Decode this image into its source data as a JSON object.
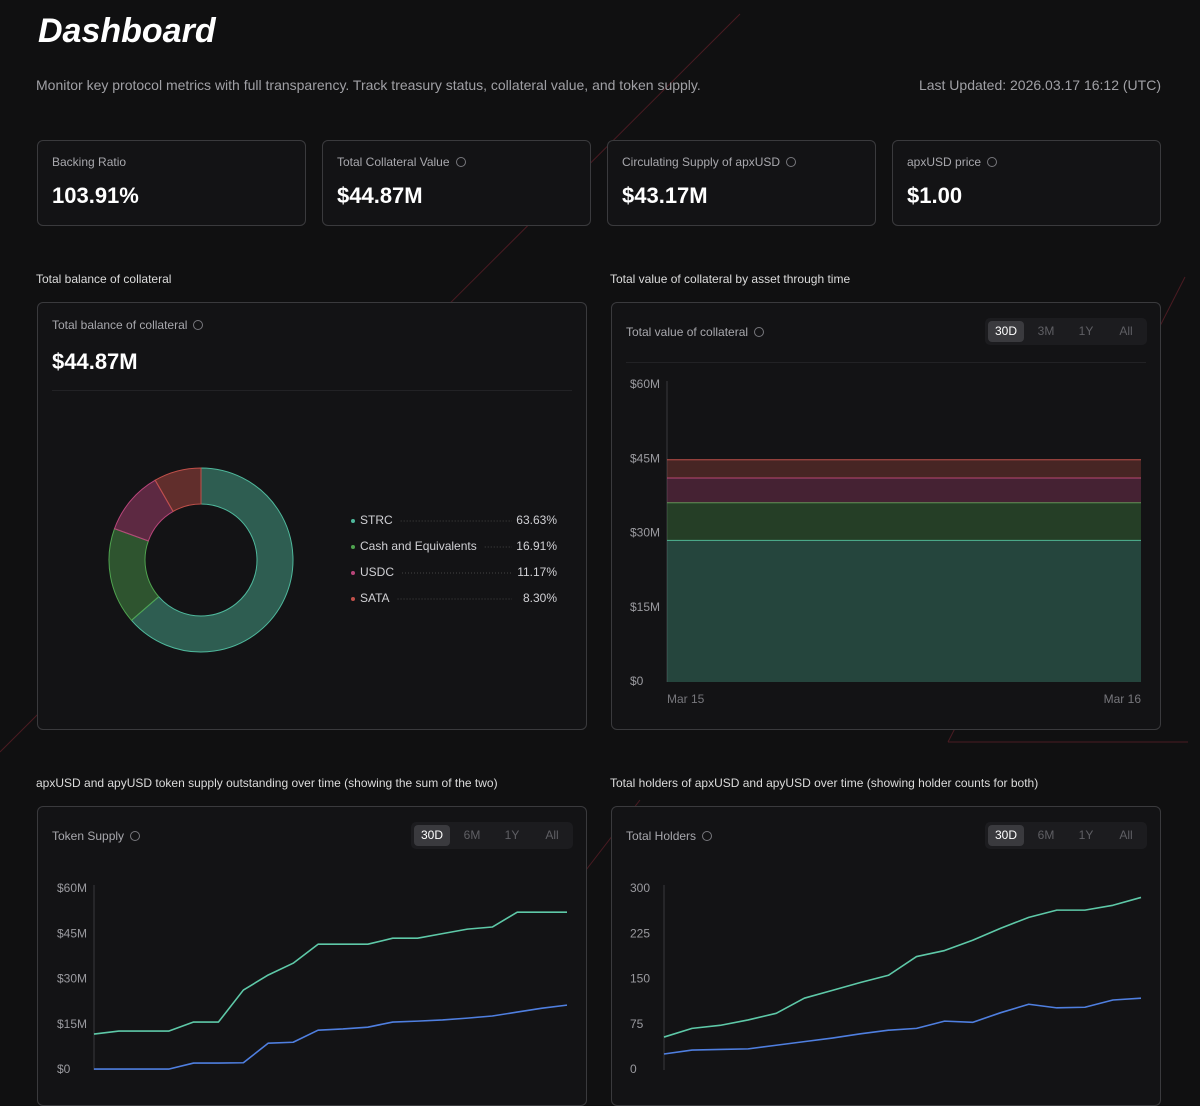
{
  "header": {
    "title": "Dashboard",
    "description": "Monitor key protocol metrics with full transparency. Track treasury status, collateral value, and token supply.",
    "last_updated": "Last Updated: 2026.03.17 16:12 (UTC)"
  },
  "stats": [
    {
      "label": "Backing Ratio",
      "value": "103.91%",
      "info": false
    },
    {
      "label": "Total Collateral Value",
      "value": "$44.87M",
      "info": true
    },
    {
      "label": "Circulating Supply of apxUSD",
      "value": "$43.17M",
      "info": true
    },
    {
      "label": "apxUSD price",
      "value": "$1.00",
      "info": true
    }
  ],
  "collateral_balance": {
    "section_title": "Total balance of collateral",
    "card_label": "Total balance of collateral",
    "total": "$44.87M",
    "chart_data": {
      "type": "pie",
      "categories": [
        "STRC",
        "Cash and Equivalents",
        "USDC",
        "SATA"
      ],
      "values": [
        63.63,
        16.91,
        11.17,
        8.3
      ],
      "value_labels": [
        "63.63%",
        "16.91%",
        "11.17%",
        "8.30%"
      ],
      "colors": [
        "#4fb89c",
        "#4fa34f",
        "#b8457a",
        "#c0504a"
      ]
    }
  },
  "collateral_value": {
    "section_title": "Total value of collateral by asset through time",
    "card_label": "Total value of collateral",
    "tabs": [
      "30D",
      "3M",
      "1Y",
      "All"
    ],
    "chart_data": {
      "type": "area",
      "stacked": true,
      "categories": [
        "Mar 15",
        "Mar 16"
      ],
      "series": [
        {
          "name": "STRC",
          "color": "#4fb89c",
          "values": [
            28.6,
            28.6
          ]
        },
        {
          "name": "Cash and Equivalents",
          "color": "#4fa34f",
          "values": [
            7.6,
            7.6
          ]
        },
        {
          "name": "USDC",
          "color": "#b8457a",
          "values": [
            5.0,
            5.0
          ]
        },
        {
          "name": "SATA",
          "color": "#c0504a",
          "values": [
            3.7,
            3.7
          ]
        }
      ],
      "ylim": [
        0,
        60
      ],
      "yticks": [
        {
          "value": 0,
          "label": "$0"
        },
        {
          "value": 15,
          "label": "$15M"
        },
        {
          "value": 30,
          "label": "$30M"
        },
        {
          "value": 45,
          "label": "$45M"
        },
        {
          "value": 60,
          "label": "$60M"
        }
      ]
    }
  },
  "token_supply": {
    "section_title": "apxUSD and apyUSD token supply outstanding over time (showing the sum of the two)",
    "card_label": "Token Supply",
    "tabs": [
      "30D",
      "6M",
      "1Y",
      "All"
    ],
    "chart_data": {
      "type": "line",
      "categories": [
        null,
        null,
        null,
        null,
        null,
        null,
        null,
        null,
        null,
        null,
        null,
        null,
        null,
        null,
        null,
        null,
        null,
        null,
        null,
        null
      ],
      "series": [
        {
          "color": "#5ec9a8",
          "values": [
            11.9,
            12.9,
            12.9,
            12.9,
            15.9,
            15.9,
            26.5,
            31.5,
            35.4,
            41.7,
            41.7,
            41.7,
            43.7,
            43.7,
            45.2,
            46.7,
            47.4,
            52.3,
            52.3,
            52.3
          ]
        },
        {
          "color": "#4f7fe0",
          "values": [
            0.3,
            0.3,
            0.3,
            0.3,
            2.3,
            2.3,
            2.4,
            8.9,
            9.2,
            13.2,
            13.6,
            14.2,
            15.9,
            16.2,
            16.6,
            17.2,
            17.9,
            19.2,
            20.5,
            21.5
          ]
        }
      ],
      "ylim": [
        0,
        60
      ],
      "yticks": [
        {
          "value": 0,
          "label": "$0"
        },
        {
          "value": 15,
          "label": "$15M"
        },
        {
          "value": 30,
          "label": "$30M"
        },
        {
          "value": 45,
          "label": "$45M"
        },
        {
          "value": 60,
          "label": "$60M"
        }
      ]
    }
  },
  "holders": {
    "section_title": "Total holders of apxUSD and apyUSD over time (showing holder counts for both)",
    "card_label": "Total Holders",
    "tabs": [
      "30D",
      "6M",
      "1Y",
      "All"
    ],
    "chart_data": {
      "type": "line",
      "categories": [
        null,
        null,
        null,
        null,
        null,
        null,
        null,
        null,
        null,
        null,
        null,
        null,
        null,
        null,
        null,
        null,
        null,
        null
      ],
      "series": [
        {
          "color": "#5ec9a8",
          "values": [
            54.6,
            69,
            74,
            83,
            94,
            119,
            132,
            145,
            157,
            188,
            198,
            215,
            235,
            253,
            265,
            265,
            273,
            286
          ]
        },
        {
          "color": "#4f7fe0",
          "values": [
            26.5,
            33,
            34,
            35,
            41,
            47,
            53,
            60,
            66,
            69,
            81,
            79,
            95,
            109,
            103,
            104,
            116,
            119
          ]
        }
      ],
      "ylim": [
        0,
        300
      ],
      "yticks": [
        0,
        75,
        150,
        225,
        300
      ]
    }
  }
}
